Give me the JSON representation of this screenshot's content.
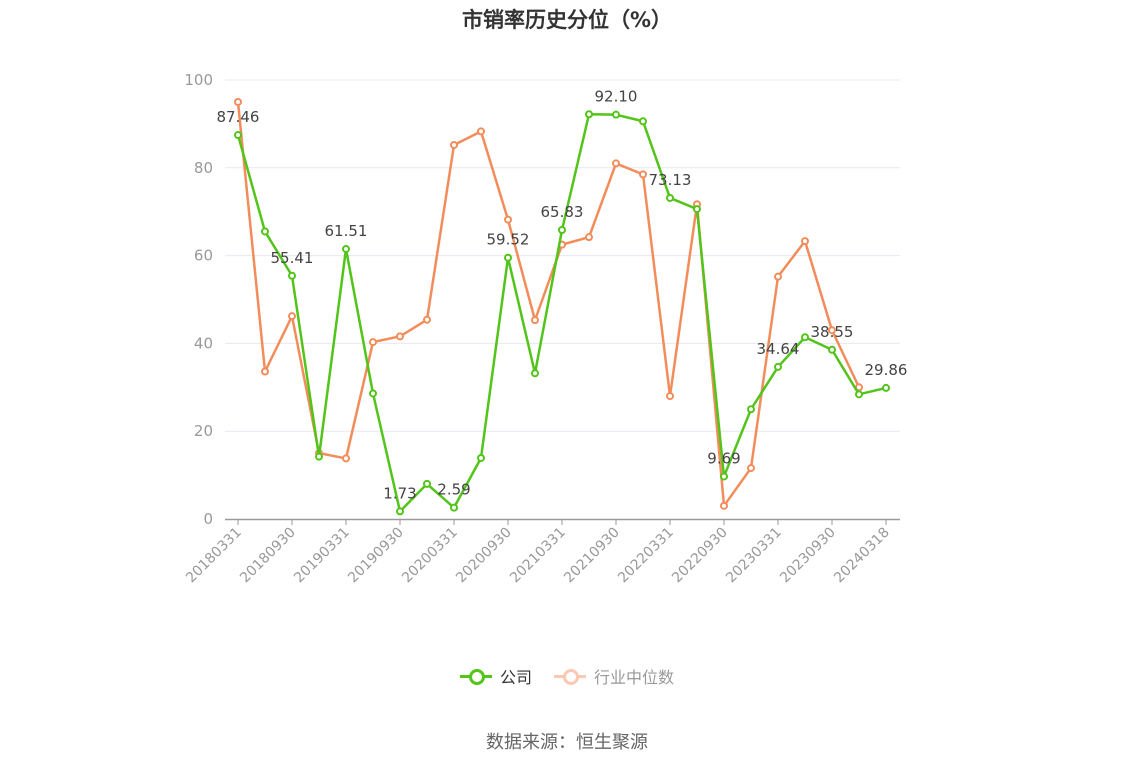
{
  "title": "市销率历史分位（%）",
  "source": "数据来源：恒生聚源",
  "chart_data": {
    "type": "line",
    "ylim": [
      0,
      100
    ],
    "yticks": [
      0,
      20,
      40,
      60,
      80,
      100
    ],
    "grid": true,
    "legend_position": "bottom",
    "x": [
      "20180331",
      "20180630",
      "20180930",
      "20181231",
      "20190331",
      "20190630",
      "20190930",
      "20191231",
      "20200331",
      "20200630",
      "20200930",
      "20201231",
      "20210331",
      "20210630",
      "20210930",
      "20211231",
      "20220331",
      "20220630",
      "20220930",
      "20221231",
      "20230331",
      "20230630",
      "20230930",
      "20231231",
      "20240318"
    ],
    "xtick_labels": [
      "20180331",
      "20180930",
      "20190331",
      "20190930",
      "20200331",
      "20200930",
      "20210331",
      "20210930",
      "20220331",
      "20220930",
      "20230331",
      "20230930",
      "20240318"
    ],
    "series": [
      {
        "name": "公司",
        "color": "#52c41a",
        "values": [
          87.46,
          65.5,
          55.41,
          14.2,
          61.51,
          28.6,
          1.73,
          8.0,
          2.59,
          13.9,
          59.52,
          33.2,
          65.83,
          92.2,
          92.1,
          90.6,
          73.13,
          70.6,
          9.69,
          25.0,
          34.64,
          41.4,
          38.55,
          28.4,
          29.86
        ],
        "point_labels": {
          "0": "87.46",
          "2": "55.41",
          "4": "61.51",
          "6": "1.73",
          "8": "2.59",
          "10": "59.52",
          "12": "65.83",
          "14": "92.10",
          "16": "73.13",
          "18": "9.69",
          "20": "34.64",
          "22": "38.55",
          "24": "29.86"
        }
      },
      {
        "name": "行业中位数",
        "color": "#f28c5a",
        "values": [
          95.0,
          33.6,
          46.2,
          15.0,
          13.8,
          40.3,
          41.6,
          45.4,
          85.2,
          88.3,
          68.2,
          45.3,
          62.5,
          64.2,
          81.0,
          78.5,
          28.0,
          71.7,
          3.0,
          11.6,
          55.2,
          63.3,
          43.0,
          30.0,
          null
        ]
      }
    ]
  }
}
